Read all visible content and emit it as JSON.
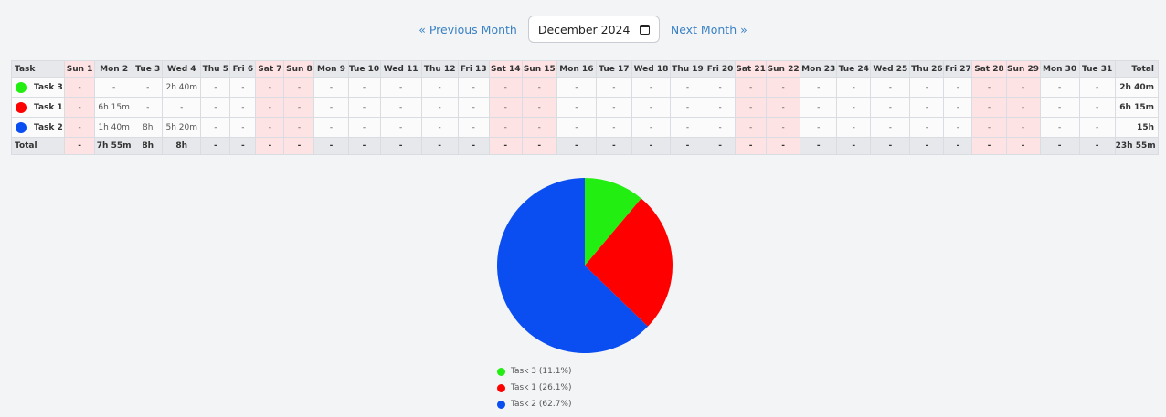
{
  "nav": {
    "prev_label": "« Previous Month",
    "next_label": "Next Month »",
    "date_value": "December  2024"
  },
  "table": {
    "task_header": "Task",
    "total_header": "Total",
    "days": [
      {
        "label": "Sun 1",
        "weekend": true
      },
      {
        "label": "Mon 2",
        "weekend": false
      },
      {
        "label": "Tue 3",
        "weekend": false
      },
      {
        "label": "Wed 4",
        "weekend": false
      },
      {
        "label": "Thu 5",
        "weekend": false
      },
      {
        "label": "Fri 6",
        "weekend": false
      },
      {
        "label": "Sat 7",
        "weekend": true
      },
      {
        "label": "Sun 8",
        "weekend": true
      },
      {
        "label": "Mon 9",
        "weekend": false
      },
      {
        "label": "Tue 10",
        "weekend": false
      },
      {
        "label": "Wed 11",
        "weekend": false
      },
      {
        "label": "Thu 12",
        "weekend": false
      },
      {
        "label": "Fri 13",
        "weekend": false
      },
      {
        "label": "Sat 14",
        "weekend": true
      },
      {
        "label": "Sun 15",
        "weekend": true
      },
      {
        "label": "Mon 16",
        "weekend": false
      },
      {
        "label": "Tue 17",
        "weekend": false
      },
      {
        "label": "Wed 18",
        "weekend": false
      },
      {
        "label": "Thu 19",
        "weekend": false
      },
      {
        "label": "Fri 20",
        "weekend": false
      },
      {
        "label": "Sat 21",
        "weekend": true
      },
      {
        "label": "Sun 22",
        "weekend": true
      },
      {
        "label": "Mon 23",
        "weekend": false
      },
      {
        "label": "Tue 24",
        "weekend": false
      },
      {
        "label": "Wed 25",
        "weekend": false
      },
      {
        "label": "Thu 26",
        "weekend": false
      },
      {
        "label": "Fri 27",
        "weekend": false
      },
      {
        "label": "Sat 28",
        "weekend": true
      },
      {
        "label": "Sun 29",
        "weekend": true
      },
      {
        "label": "Mon 30",
        "weekend": false
      },
      {
        "label": "Tue 31",
        "weekend": false
      }
    ],
    "rows": [
      {
        "name": "Task 3",
        "color": "#22ee11",
        "cells": [
          "-",
          "-",
          "-",
          "2h 40m",
          "-",
          "-",
          "-",
          "-",
          "-",
          "-",
          "-",
          "-",
          "-",
          "-",
          "-",
          "-",
          "-",
          "-",
          "-",
          "-",
          "-",
          "-",
          "-",
          "-",
          "-",
          "-",
          "-",
          "-",
          "-",
          "-",
          "-"
        ],
        "total": "2h 40m"
      },
      {
        "name": "Task 1",
        "color": "#ff0000",
        "cells": [
          "-",
          "6h 15m",
          "-",
          "-",
          "-",
          "-",
          "-",
          "-",
          "-",
          "-",
          "-",
          "-",
          "-",
          "-",
          "-",
          "-",
          "-",
          "-",
          "-",
          "-",
          "-",
          "-",
          "-",
          "-",
          "-",
          "-",
          "-",
          "-",
          "-",
          "-",
          "-"
        ],
        "total": "6h 15m"
      },
      {
        "name": "Task 2",
        "color": "#0a4df0",
        "cells": [
          "-",
          "1h 40m",
          "8h",
          "5h 20m",
          "-",
          "-",
          "-",
          "-",
          "-",
          "-",
          "-",
          "-",
          "-",
          "-",
          "-",
          "-",
          "-",
          "-",
          "-",
          "-",
          "-",
          "-",
          "-",
          "-",
          "-",
          "-",
          "-",
          "-",
          "-",
          "-",
          "-"
        ],
        "total": "15h"
      }
    ],
    "footer": {
      "label": "Total",
      "cells": [
        "-",
        "7h 55m",
        "8h",
        "8h",
        "-",
        "-",
        "-",
        "-",
        "-",
        "-",
        "-",
        "-",
        "-",
        "-",
        "-",
        "-",
        "-",
        "-",
        "-",
        "-",
        "-",
        "-",
        "-",
        "-",
        "-",
        "-",
        "-",
        "-",
        "-",
        "-",
        "-"
      ],
      "total": "23h 55m"
    }
  },
  "chart_data": {
    "type": "pie",
    "slices": [
      {
        "label": "Task 3 (11.1%)",
        "value": 11.1,
        "color": "#22ee11"
      },
      {
        "label": "Task 1 (26.1%)",
        "value": 26.1,
        "color": "#ff0000"
      },
      {
        "label": "Task 2 (62.7%)",
        "value": 62.7,
        "color": "#0a4df0"
      }
    ],
    "legend_position": "bottom-left"
  }
}
